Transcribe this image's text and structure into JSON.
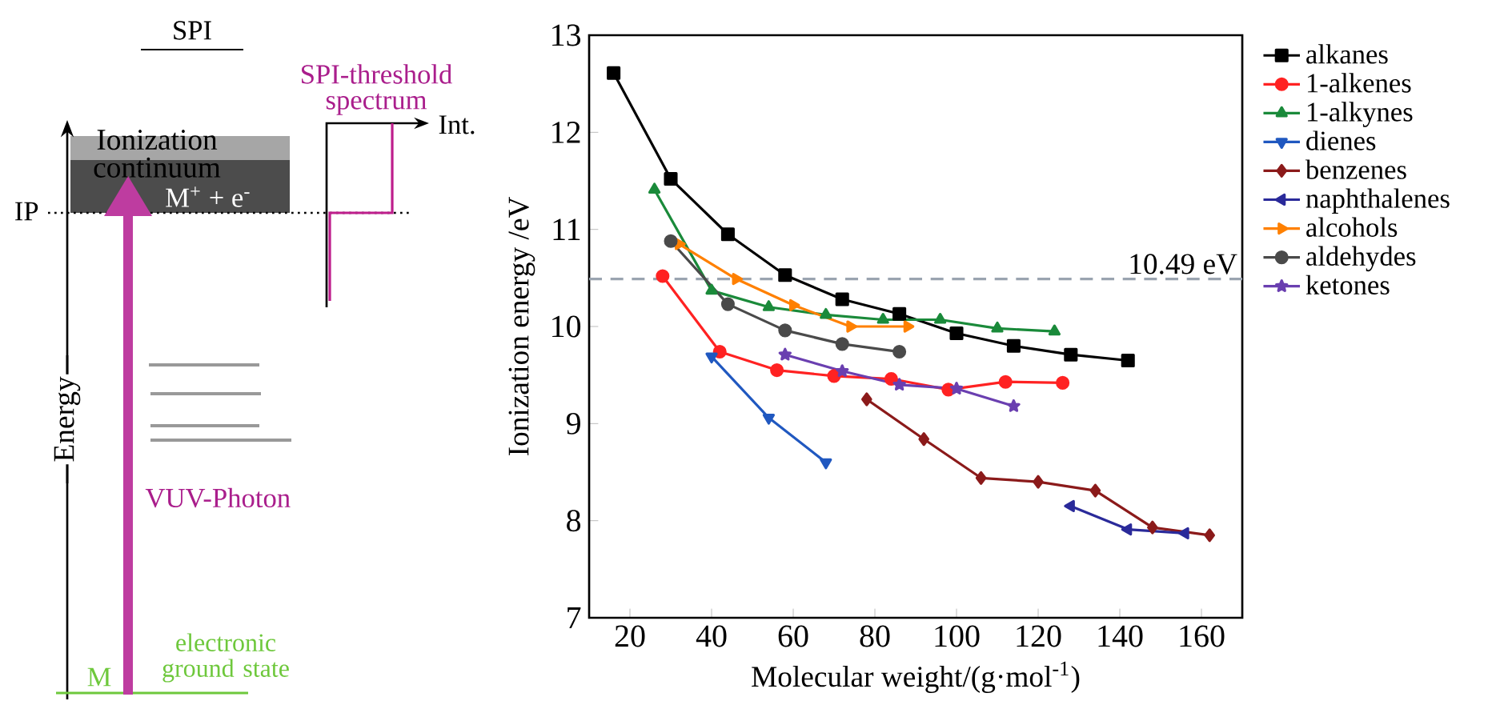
{
  "chart_data": {
    "type": "line",
    "xlabel": "Molecular weight/(g·mol$^{-1}$)",
    "ylabel": "Ionization energy /eV",
    "xlim": [
      10,
      170
    ],
    "ylim": [
      7,
      13
    ],
    "xticks": [
      20,
      40,
      60,
      80,
      100,
      120,
      140,
      160
    ],
    "yticks": [
      7,
      8,
      9,
      10,
      11,
      12,
      13
    ],
    "legend": "right",
    "grid": false,
    "series": [
      {
        "name": "alkanes",
        "color": "#000000",
        "marker": "square",
        "x": [
          16,
          30,
          44,
          58,
          72,
          86,
          100,
          114,
          128,
          142
        ],
        "values": [
          12.61,
          11.52,
          10.95,
          10.53,
          10.28,
          10.13,
          9.93,
          9.8,
          9.71,
          9.65
        ]
      },
      {
        "name": "1-alkenes",
        "color": "#ff2222",
        "marker": "circle",
        "x": [
          28,
          42,
          56,
          70,
          84,
          98,
          112,
          126
        ],
        "values": [
          10.52,
          9.74,
          9.55,
          9.49,
          9.46,
          9.35,
          9.43,
          9.42
        ]
      },
      {
        "name": "1-alkynes",
        "color": "#1a8a3a",
        "marker": "triangle",
        "x": [
          26,
          40,
          54,
          68,
          82,
          96,
          110,
          124
        ],
        "values": [
          11.41,
          10.37,
          10.2,
          10.12,
          10.07,
          10.07,
          9.98,
          9.95
        ]
      },
      {
        "name": "dienes",
        "color": "#2058c0",
        "marker": "triangle-down",
        "x": [
          40,
          54,
          68
        ],
        "values": [
          9.69,
          9.06,
          8.6
        ]
      },
      {
        "name": "benzenes",
        "color": "#8b1a1a",
        "marker": "diamond",
        "x": [
          78,
          92,
          106,
          120,
          134,
          148,
          162
        ],
        "values": [
          9.25,
          8.84,
          8.44,
          8.4,
          8.31,
          7.93,
          7.85
        ]
      },
      {
        "name": "naphthalenes",
        "color": "#2a2a9a",
        "marker": "triangle-left",
        "x": [
          128,
          142,
          156
        ],
        "values": [
          8.15,
          7.91,
          7.87
        ]
      },
      {
        "name": "alcohols",
        "color": "#ff8000",
        "marker": "triangle-right",
        "x": [
          32,
          46,
          60,
          74,
          88
        ],
        "values": [
          10.85,
          10.49,
          10.22,
          10.0,
          10.0
        ]
      },
      {
        "name": "aldehydes",
        "color": "#4a4a4a",
        "marker": "circle",
        "x": [
          30,
          44,
          58,
          72,
          86
        ],
        "values": [
          10.88,
          10.23,
          9.96,
          9.82,
          9.74
        ]
      },
      {
        "name": "ketones",
        "color": "#6a3fb0",
        "marker": "star",
        "x": [
          58,
          72,
          86,
          100,
          114
        ],
        "values": [
          9.71,
          9.54,
          9.4,
          9.36,
          9.18
        ]
      }
    ],
    "ref_lines": [
      {
        "axis": "y",
        "value": 10.49,
        "label": "10.49 eV",
        "color": "#9aa4b0",
        "line_style": "dashed"
      }
    ],
    "annotations": [
      "SPI",
      "SPI-threshold spectrum",
      "Int.",
      "Ionization continuum",
      "IP",
      "M$^{+}$ + e$^{-}$",
      "Energy",
      "VUV-Photon",
      "M",
      "electronic ground state"
    ]
  }
}
